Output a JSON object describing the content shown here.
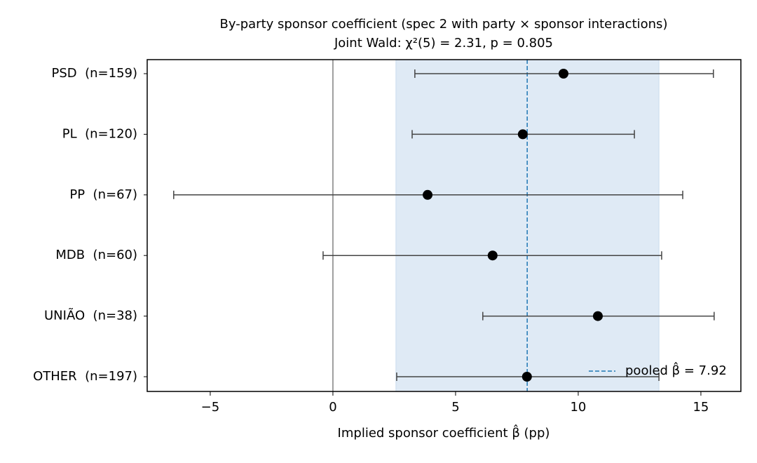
{
  "chart_data": {
    "type": "forest",
    "title": "By-party sponsor coefficient (spec 2 with party × sponsor interactions)",
    "subtitle": "Joint Wald: χ²(5) = 2.31, p = 0.805",
    "x_label": "Implied sponsor coefficient β̂ (pp)",
    "categories": [
      "PSD  (n=159)",
      "PL  (n=120)",
      "PP  (n=67)",
      "MDB  (n=60)",
      "UNIÃO  (n=38)",
      "OTHER  (n=197)"
    ],
    "values": [
      9.4,
      7.74,
      3.86,
      6.51,
      10.8,
      7.91
    ],
    "lower": [
      3.34,
      3.23,
      -6.49,
      -0.4,
      6.11,
      2.6
    ],
    "upper": [
      15.51,
      12.29,
      14.26,
      13.4,
      15.54,
      13.29
    ],
    "color": "#000000",
    "errorbar_color": "#444444",
    "pooled": {
      "value": 7.92,
      "label": "pooled β̂ = 7.92",
      "color": "#1f77b4"
    },
    "band": {
      "lower": 2.57,
      "upper": 13.29,
      "color": "#dfeaf5"
    },
    "zero_line": true,
    "legend_position": "lower right",
    "xlim": [
      -7.57,
      16.63
    ],
    "xticks": [
      {
        "value": -5,
        "label": "−5"
      },
      0,
      5,
      10,
      15
    ]
  }
}
